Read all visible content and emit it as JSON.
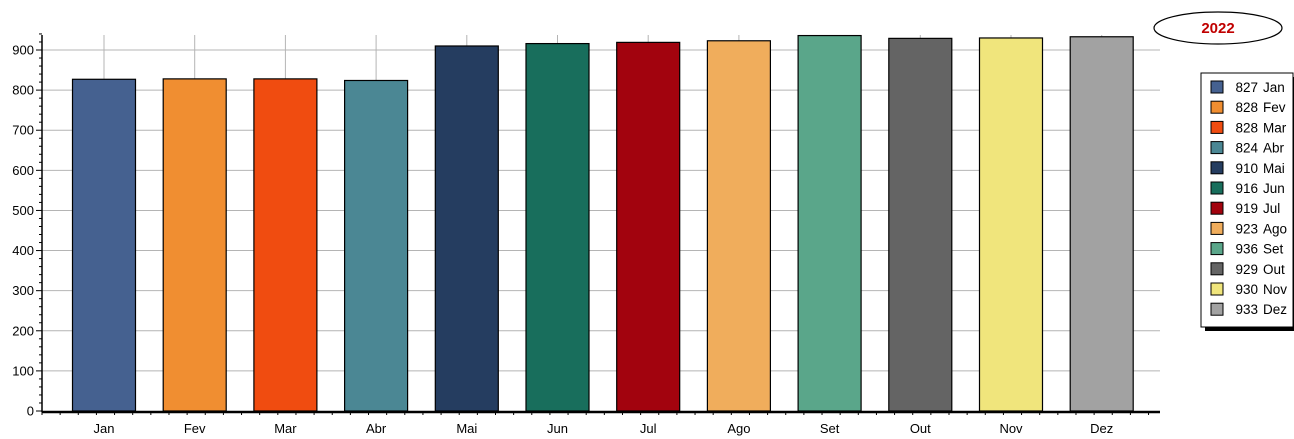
{
  "chart_data": {
    "type": "bar",
    "title": "2022",
    "categories": [
      "Jan",
      "Fev",
      "Mar",
      "Abr",
      "Mai",
      "Jun",
      "Jul",
      "Ago",
      "Set",
      "Out",
      "Nov",
      "Dez"
    ],
    "values": [
      827,
      828,
      828,
      824,
      910,
      916,
      919,
      923,
      936,
      929,
      930,
      933
    ],
    "colors": [
      "#456190",
      "#f08e31",
      "#f04c10",
      "#4b8794",
      "#253d60",
      "#186e5c",
      "#a2030e",
      "#f0ad5c",
      "#5aa68a",
      "#646464",
      "#f0e57c",
      "#a2a2a2"
    ],
    "legend": [
      {
        "value": "827",
        "label": "Jan"
      },
      {
        "value": "828",
        "label": "Fev"
      },
      {
        "value": "828",
        "label": "Mar"
      },
      {
        "value": "824",
        "label": "Abr"
      },
      {
        "value": "910",
        "label": "Mai"
      },
      {
        "value": "916",
        "label": "Jun"
      },
      {
        "value": "919",
        "label": "Jul"
      },
      {
        "value": "923",
        "label": "Ago"
      },
      {
        "value": "936",
        "label": "Set"
      },
      {
        "value": "929",
        "label": "Out"
      },
      {
        "value": "930",
        "label": "Nov"
      },
      {
        "value": "933",
        "label": "Dez"
      }
    ],
    "y_ticks": [
      0,
      100,
      200,
      300,
      400,
      500,
      600,
      700,
      800,
      900
    ],
    "ylim": [
      0,
      950
    ],
    "xlabel": "",
    "ylabel": "",
    "grid": true,
    "legend_position": "right"
  }
}
